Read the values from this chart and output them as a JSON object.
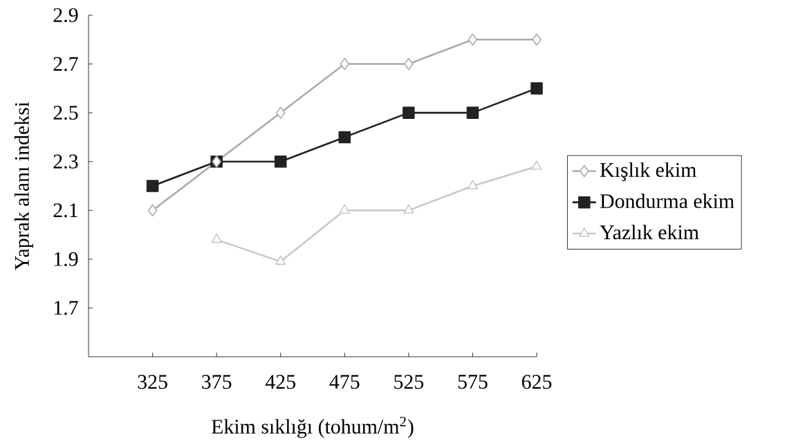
{
  "chart_data": {
    "type": "line",
    "xlabel": "Ekim sıklığı (tohum/m$^{2}$)",
    "ylabel": "Yaprak alanı indeksi",
    "categories": [
      "325",
      "375",
      "425",
      "475",
      "525",
      "575",
      "625"
    ],
    "series": [
      {
        "name": "Kışlık ekim",
        "color": "#aaaaaa",
        "marker": "diamond",
        "values": [
          2.1,
          2.3,
          2.5,
          2.7,
          2.7,
          2.8,
          2.8
        ]
      },
      {
        "name": "Dondurma ekim",
        "color": "#222222",
        "marker": "square",
        "values": [
          2.2,
          2.3,
          2.3,
          2.4,
          2.5,
          2.5,
          2.6
        ]
      },
      {
        "name": "Yazlık ekim",
        "color": "#c8c8c8",
        "marker": "triangle",
        "values": [
          null,
          1.98,
          1.89,
          2.1,
          2.1,
          2.2,
          2.28
        ]
      }
    ],
    "ylim": [
      1.5,
      2.9
    ],
    "yticks": [
      1.7,
      1.9,
      2.1,
      2.3,
      2.5,
      2.7,
      2.9
    ],
    "grid": false,
    "legend": "right",
    "line_style": "solid"
  }
}
